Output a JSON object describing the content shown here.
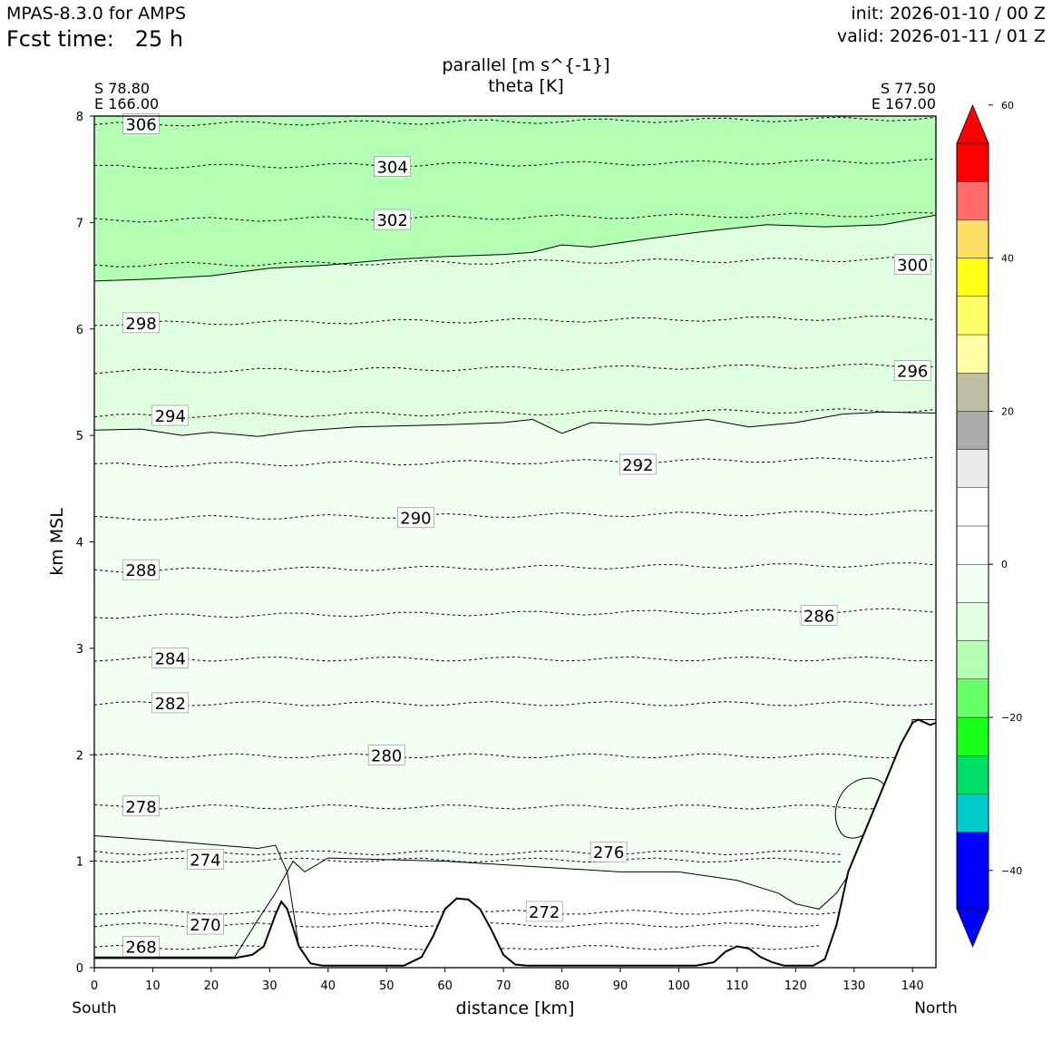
{
  "header": {
    "model": "MPAS-8.3.0 for AMPS",
    "fcst_label": "Fcst time:",
    "fcst_value": "25 h",
    "init": "init: 2026-01-10 / 00 Z",
    "valid": "valid: 2026-01-11 / 01 Z"
  },
  "chart_data": {
    "type": "contour cross-section",
    "title_line1": "parallel [m s^{-1}]",
    "title_line2": "theta [K]",
    "start_point": {
      "lat": "S 78.80",
      "lon": "E 166.00",
      "end_label": "South"
    },
    "end_point": {
      "lat": "S 77.50",
      "lon": "E 167.00",
      "end_label": "North"
    },
    "xlabel": "distance [km]",
    "ylabel": "km MSL",
    "xlim": [
      0,
      144
    ],
    "ylim": [
      0,
      8
    ],
    "xticks": [
      "0",
      "10",
      "20",
      "30",
      "40",
      "50",
      "60",
      "70",
      "80",
      "90",
      "100",
      "110",
      "120",
      "130",
      "140"
    ],
    "yticks": [
      "0",
      "1",
      "2",
      "3",
      "4",
      "5",
      "6",
      "7",
      "8"
    ],
    "theta_contours": [
      {
        "value": 306,
        "x_label_km": 8,
        "height_km": 7.92
      },
      {
        "value": 304,
        "x_label_km": 51,
        "height_km": 7.52
      },
      {
        "value": 302,
        "x_label_km": 51,
        "height_km": 7.02
      },
      {
        "value": 300,
        "x_label_km": 140,
        "height_km": 6.6
      },
      {
        "value": 298,
        "x_label_km": 8,
        "height_km": 6.05
      },
      {
        "value": 296,
        "x_label_km": 140,
        "height_km": 5.6
      },
      {
        "value": 294,
        "x_label_km": 13,
        "height_km": 5.18
      },
      {
        "value": 292,
        "x_label_km": 93,
        "height_km": 4.72
      },
      {
        "value": 290,
        "x_label_km": 55,
        "height_km": 4.22
      },
      {
        "value": 288,
        "x_label_km": 8,
        "height_km": 3.73
      },
      {
        "value": 286,
        "x_label_km": 124,
        "height_km": 3.3
      },
      {
        "value": 284,
        "x_label_km": 13,
        "height_km": 2.9
      },
      {
        "value": 282,
        "x_label_km": 13,
        "height_km": 2.48
      },
      {
        "value": 280,
        "x_label_km": 50,
        "height_km": 1.99
      },
      {
        "value": 278,
        "x_label_km": 8,
        "height_km": 1.51
      },
      {
        "value": 276,
        "x_label_km": 88,
        "height_km": 1.08
      },
      {
        "value": 274,
        "x_label_km": 19,
        "height_km": 1.01
      },
      {
        "value": 272,
        "x_label_km": 77,
        "height_km": 0.52
      },
      {
        "value": 270,
        "x_label_km": 19,
        "height_km": 0.4
      },
      {
        "value": 268,
        "x_label_km": 8,
        "height_km": 0.19
      }
    ],
    "wind_fill_levels": [
      {
        "range": "< -10",
        "color": "#b3ffb3",
        "region": "above ~5-7 km"
      },
      {
        "range": "-10 to -5",
        "color": "#e0ffe0"
      },
      {
        "range": "-5 to 0",
        "color": "#f2fff2"
      }
    ],
    "colorbar": {
      "tick_labels": [
        "60",
        "40",
        "20",
        "0",
        "−20",
        "−40"
      ],
      "tick_values": [
        60,
        40,
        20,
        0,
        -20,
        -40
      ],
      "min": -45,
      "max": 55,
      "step": 5,
      "colors": [
        "#0000ff",
        "#0000ff",
        "#00cccc",
        "#00e066",
        "#1aff1a",
        "#66ff66",
        "#b3ffb3",
        "#e0ffe0",
        "#f2fff2",
        "#ffffff",
        "#ffffff",
        "#ebebeb",
        "#aaaaaa",
        "#bfbfa6",
        "#ffffa6",
        "#ffff66",
        "#ffff1a",
        "#ffe066",
        "#ff6b6b",
        "#ff0000"
      ]
    }
  }
}
